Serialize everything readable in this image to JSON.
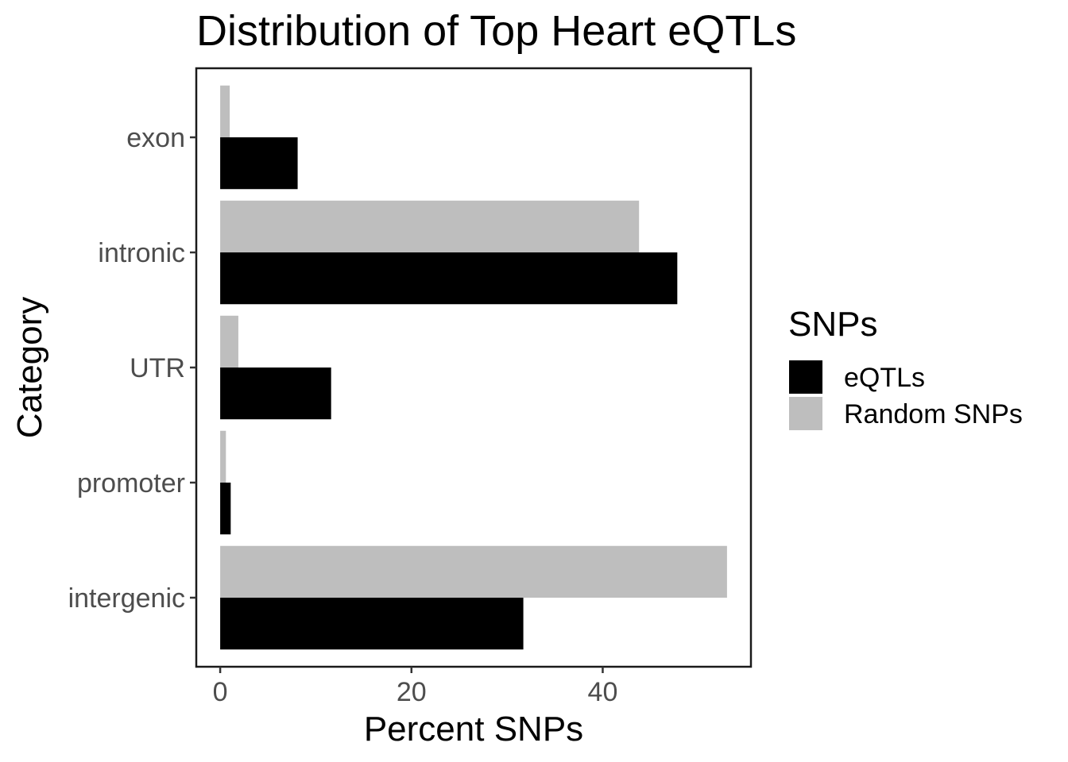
{
  "chart_data": {
    "type": "bar",
    "orientation": "horizontal",
    "title": "Distribution of Top Heart eQTLs",
    "xlabel": "Percent SNPs",
    "ylabel": "Category",
    "categories": [
      "exon",
      "intronic",
      "UTR",
      "promoter",
      "intergenic"
    ],
    "series": [
      {
        "name": "eQTLs",
        "color": "#000000",
        "values": [
          8.1,
          47.8,
          11.6,
          1.1,
          31.7
        ]
      },
      {
        "name": "Random SNPs",
        "color": "#bebebe",
        "values": [
          1.0,
          43.8,
          1.9,
          0.6,
          53.0
        ]
      }
    ],
    "xlim": [
      -2.5,
      55.5
    ],
    "xticks": [
      0,
      20,
      40
    ],
    "grid": false,
    "legend": {
      "title": "SNPs",
      "position": "right"
    }
  }
}
